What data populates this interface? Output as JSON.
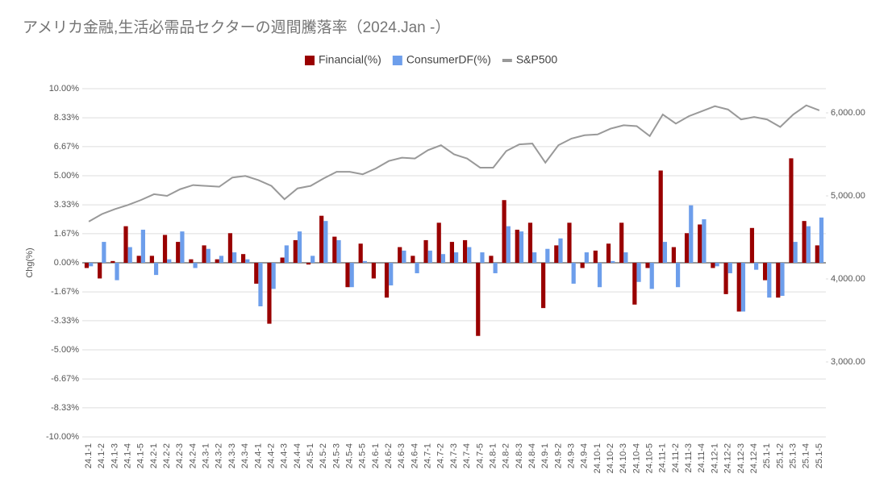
{
  "chart_data": {
    "type": "bar_line",
    "title": "アメリカ金融,生活必需品セクターの週間騰落率（2024.Jan -）",
    "ylabel": "Chg(%)",
    "categories": [
      "24.1-1",
      "24.1-2",
      "24.1-3",
      "24.1-4",
      "24.1-5",
      "24.2-1",
      "24.2-2",
      "24.2-3",
      "24.2-4",
      "24.3-1",
      "24.3-2",
      "24.3-3",
      "24.3-4",
      "24.4-1",
      "24.4-2",
      "24.4-3",
      "24.4-4",
      "24.5-1",
      "24.5-2",
      "24.5-3",
      "24.5-4",
      "24.5-5",
      "24.6-1",
      "24.6-2",
      "24.6-3",
      "24.6-4",
      "24.7-1",
      "24.7-2",
      "24.7-3",
      "24.7-4",
      "24.7-5",
      "24.8-1",
      "24.8-2",
      "24.8-3",
      "24.8-4",
      "24.9-1",
      "24.9-2",
      "24.9-3",
      "24.9-4",
      "24.10-1",
      "24.10-2",
      "24.10-3",
      "24.10-4",
      "24.10-5",
      "24.11-1",
      "24.11-2",
      "24.11-3",
      "24.11-4",
      "24.12-1",
      "24.12-2",
      "24.12-3",
      "24.12-4",
      "25.1-1",
      "25.1-2",
      "25.1-3",
      "25.1-4",
      "25.1-5"
    ],
    "series": [
      {
        "name": "Financial(%)",
        "color": "#990000",
        "values": [
          -0.3,
          -0.9,
          0.1,
          2.1,
          0.4,
          0.4,
          1.6,
          1.2,
          0.2,
          1.0,
          0.2,
          1.7,
          0.5,
          -1.2,
          -3.5,
          0.3,
          1.3,
          -0.1,
          2.7,
          1.5,
          -1.4,
          1.1,
          -0.9,
          -2.0,
          0.9,
          0.4,
          1.3,
          2.3,
          1.2,
          1.3,
          -4.2,
          0.4,
          3.6,
          1.9,
          2.3,
          -2.6,
          1.0,
          2.3,
          -0.3,
          0.7,
          1.1,
          2.3,
          -2.4,
          -0.3,
          5.3,
          0.9,
          1.7,
          2.2,
          -0.3,
          -1.8,
          -2.8,
          2.0,
          -1.0,
          -2.0,
          6.0,
          2.4,
          1.0
        ]
      },
      {
        "name": "ConsumerDF(%)",
        "color": "#6d9eeb",
        "values": [
          -0.2,
          1.2,
          -1.0,
          0.9,
          1.9,
          -0.7,
          0.2,
          1.8,
          -0.3,
          0.8,
          0.4,
          0.6,
          0.2,
          -2.5,
          -1.5,
          1.0,
          1.8,
          0.4,
          2.4,
          1.3,
          -1.4,
          0.1,
          0.0,
          -1.3,
          0.7,
          -0.6,
          0.7,
          0.5,
          0.6,
          0.9,
          0.6,
          -0.6,
          2.1,
          1.8,
          0.6,
          0.8,
          1.4,
          -1.2,
          0.6,
          -1.4,
          0.1,
          0.6,
          -1.1,
          -1.5,
          1.2,
          -1.4,
          3.3,
          2.5,
          -0.2,
          -0.6,
          -2.8,
          -0.4,
          -2.0,
          -1.9,
          1.2,
          2.1,
          2.6
        ]
      },
      {
        "name": "S&P500",
        "color": "#999999",
        "axis": "y2",
        "values": [
          4690,
          4780,
          4840,
          4890,
          4950,
          5020,
          5000,
          5080,
          5130,
          5120,
          5110,
          5220,
          5240,
          5190,
          5120,
          4960,
          5090,
          5120,
          5210,
          5290,
          5290,
          5260,
          5330,
          5420,
          5460,
          5450,
          5550,
          5610,
          5500,
          5450,
          5340,
          5340,
          5540,
          5620,
          5630,
          5400,
          5610,
          5690,
          5730,
          5740,
          5810,
          5850,
          5840,
          5720,
          5980,
          5870,
          5960,
          6020,
          6080,
          6040,
          5920,
          5950,
          5920,
          5830,
          5980,
          6090,
          6030
        ]
      }
    ],
    "ylim": [
      -10,
      10
    ],
    "yticks": [
      {
        "value": -10,
        "label": "-10.00%"
      },
      {
        "value": -8.33,
        "label": "-8.33%"
      },
      {
        "value": -6.67,
        "label": "-6.67%"
      },
      {
        "value": -5,
        "label": "-5.00%"
      },
      {
        "value": -3.33,
        "label": "-3.33%"
      },
      {
        "value": -1.67,
        "label": "-1.67%"
      },
      {
        "value": 0,
        "label": "0.00%"
      },
      {
        "value": 1.67,
        "label": "1.67%"
      },
      {
        "value": 3.33,
        "label": "3.33%"
      },
      {
        "value": 5,
        "label": "5.00%"
      },
      {
        "value": 6.67,
        "label": "6.67%"
      },
      {
        "value": 8.33,
        "label": "8.33%"
      },
      {
        "value": 10,
        "label": "10.00%"
      }
    ],
    "y2lim": [
      2097,
      6291
    ],
    "y2ticks": [
      {
        "value": 3000,
        "label": "3,000.00"
      },
      {
        "value": 4000,
        "label": "4,000.00"
      },
      {
        "value": 5000,
        "label": "5,000.00"
      },
      {
        "value": 6000,
        "label": "6,000.00"
      }
    ],
    "grid": true
  }
}
